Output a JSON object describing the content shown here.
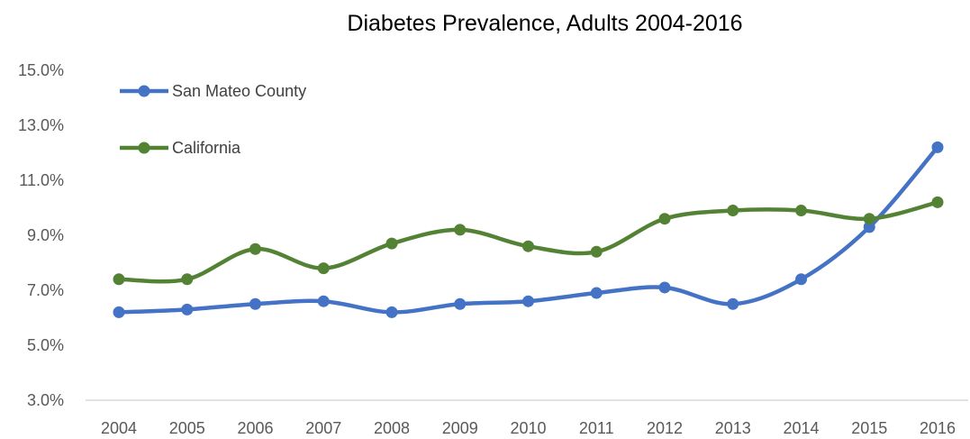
{
  "chart_data": {
    "type": "line",
    "title": "Diabetes Prevalence, Adults 2004-2016",
    "xlabel": "",
    "ylabel": "",
    "x": [
      "2004",
      "2005",
      "2006",
      "2007",
      "2008",
      "2009",
      "2010",
      "2011",
      "2012",
      "2013",
      "2014",
      "2015",
      "2016"
    ],
    "ylim": [
      3.0,
      15.0
    ],
    "yticks": [
      "3.0%",
      "5.0%",
      "7.0%",
      "9.0%",
      "11.0%",
      "13.0%",
      "15.0%"
    ],
    "grid": false,
    "legend_position": "top-left",
    "series": [
      {
        "name": "San Mateo County",
        "color": "#4472C4",
        "values": [
          6.2,
          6.3,
          6.5,
          6.6,
          6.2,
          6.5,
          6.6,
          6.9,
          7.1,
          6.5,
          7.4,
          9.3,
          12.2
        ]
      },
      {
        "name": "California",
        "color": "#548235",
        "values": [
          7.4,
          7.4,
          8.5,
          7.8,
          8.7,
          9.2,
          8.6,
          8.4,
          9.6,
          9.9,
          9.9,
          9.6,
          10.2
        ]
      }
    ]
  }
}
